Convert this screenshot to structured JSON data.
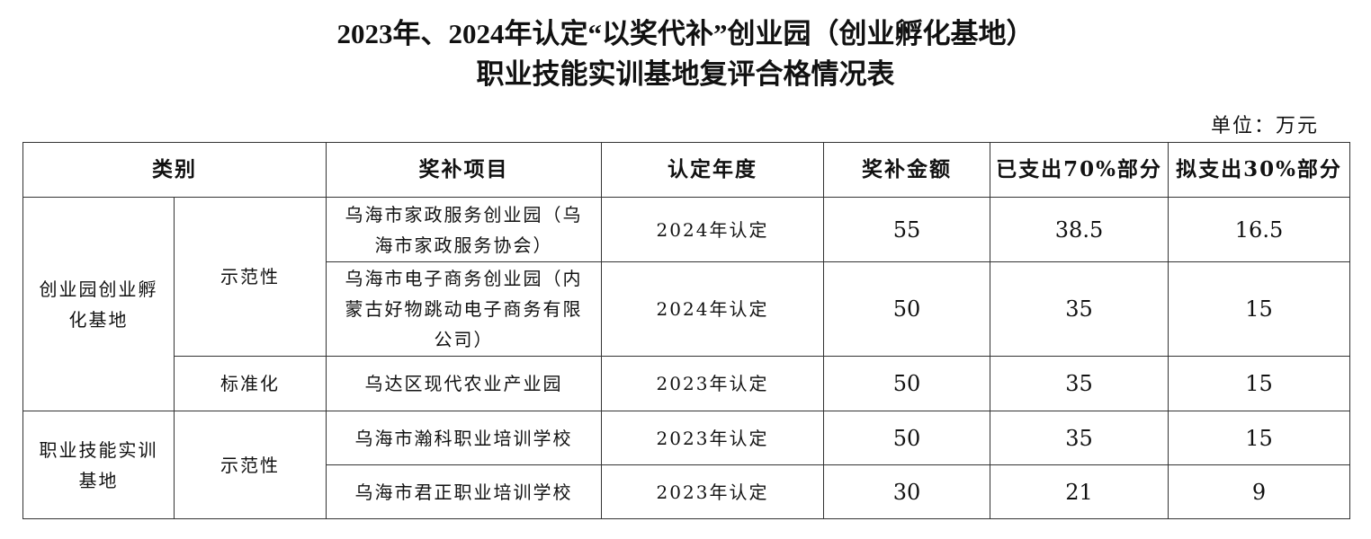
{
  "title": {
    "line1": "2023年、2024年认定“以奖代补”创业园（创业孵化基地）",
    "line2": "职业技能实训基地复评合格情况表"
  },
  "unit": "单位：万元",
  "table": {
    "headers": [
      "类别",
      "奖补项目",
      "认定年度",
      "奖补金额",
      "已支出70%部分",
      "拟支出30%部分"
    ],
    "groups": [
      {
        "category": "创业园创业孵化基地",
        "subgroups": [
          {
            "type": "示范性",
            "rows": [
              {
                "project": "乌海市家政服务创业园（乌海市家政服务协会）",
                "year": "2024年认定",
                "amount": "55",
                "paid": "38.5",
                "planned": "16.5"
              },
              {
                "project": "乌海市电子商务创业园（内蒙古好物跳动电子商务有限公司）",
                "year": "2024年认定",
                "amount": "50",
                "paid": "35",
                "planned": "15"
              }
            ]
          },
          {
            "type": "标准化",
            "rows": [
              {
                "project": "乌达区现代农业产业园",
                "year": "2023年认定",
                "amount": "50",
                "paid": "35",
                "planned": "15"
              }
            ]
          }
        ]
      },
      {
        "category": "职业技能实训基地",
        "subgroups": [
          {
            "type": "示范性",
            "rows": [
              {
                "project": "乌海市瀚科职业培训学校",
                "year": "2023年认定",
                "amount": "50",
                "paid": "35",
                "planned": "15"
              },
              {
                "project": "乌海市君正职业培训学校",
                "year": "2023年认定",
                "amount": "30",
                "paid": "21",
                "planned": "9"
              }
            ]
          }
        ]
      }
    ]
  }
}
